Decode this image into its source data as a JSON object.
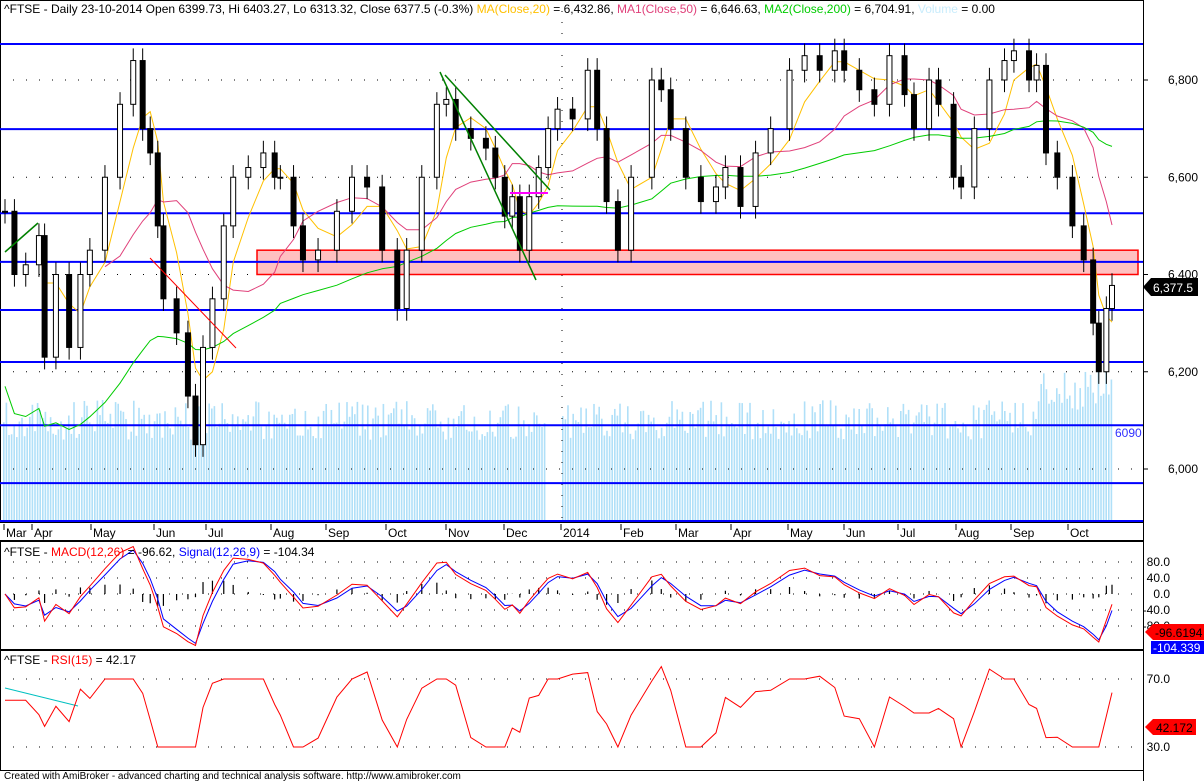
{
  "header": {
    "main_prefix": "^FTSE - Daily 23-10-2014 Open 6399.73, Hi 6403.27, Lo 6313.32, Close 6377.5 (-0.3%) ",
    "ma_label": "MA(Close,20)",
    "ma_value": " = 6,432.86, ",
    "ma1_label": "MA1(Close,50)",
    "ma1_value": " = 6,646.63, ",
    "ma2_label": "MA2(Close,200)",
    "ma2_value": " = 6,704.91, ",
    "volume_label": "Volume",
    "volume_value": " = 0.00",
    "macd_prefix": "^FTSE - ",
    "macd_label": "MACD(12,26)",
    "macd_value": " = -96.62, ",
    "signal_label": "Signal(12,26,9)",
    "signal_value": " = -104.34",
    "rsi_prefix": "^FTSE - ",
    "rsi_label": "RSI(15)",
    "rsi_value": " = 42.17"
  },
  "footer": "Created with AmiBroker - advanced charting and technical analysis software. http://www.amibroker.com",
  "colors": {
    "ma": "#ffc000",
    "ma1": "#e0407a",
    "ma2": "#00cc00",
    "volume": "#b0e0f8",
    "levels": "#0000ff",
    "zone_fill": "#ffc0c0",
    "zone_border": "#ff0000",
    "macd": "#ff0000",
    "signal": "#0000ff",
    "rsi": "#ff0000"
  },
  "chart_data": [
    {
      "type": "candlestick",
      "title": "^FTSE - Daily",
      "x_tick_labels": [
        "Mar",
        "Apr",
        "May",
        "Jun",
        "Jul",
        "Aug",
        "Sep",
        "Oct",
        "Nov",
        "Dec",
        "2014",
        "Feb",
        "Mar",
        "Apr",
        "May",
        "Jun",
        "Jul",
        "Aug",
        "Sep",
        "Oct"
      ],
      "y_tick_labels": [
        "6,800",
        "6,600",
        "6,400",
        "6,200",
        "6,000"
      ],
      "y_ticks": [
        6800,
        6600,
        6400,
        6200,
        6000
      ],
      "ylim": [
        5880,
        6960
      ],
      "last_price_label": "6,377.5",
      "last_price": 6377.5,
      "horizontal_levels": [
        6874,
        6699,
        6526,
        6426,
        6327,
        6220,
        6090,
        5971,
        5893
      ],
      "level_label": "6090",
      "resistance_zone": [
        6400,
        6450
      ],
      "grid": "dotted",
      "series": [
        {
          "name": "Close",
          "points": [
            [
              "2013-03-15",
              6530
            ],
            [
              "2013-03-20",
              6400
            ],
            [
              "2013-03-26",
              6420
            ],
            [
              "2013-04-02",
              6480
            ],
            [
              "2013-04-05",
              6230
            ],
            [
              "2013-04-11",
              6400
            ],
            [
              "2013-04-18",
              6250
            ],
            [
              "2013-04-24",
              6400
            ],
            [
              "2013-04-29",
              6450
            ],
            [
              "2013-05-07",
              6600
            ],
            [
              "2013-05-15",
              6750
            ],
            [
              "2013-05-22",
              6840
            ],
            [
              "2013-05-27",
              6700
            ],
            [
              "2013-05-31",
              6650
            ],
            [
              "2013-06-04",
              6500
            ],
            [
              "2013-06-07",
              6350
            ],
            [
              "2013-06-14",
              6280
            ],
            [
              "2013-06-20",
              6150
            ],
            [
              "2013-06-24",
              6050
            ],
            [
              "2013-06-28",
              6250
            ],
            [
              "2013-07-03",
              6350
            ],
            [
              "2013-07-09",
              6500
            ],
            [
              "2013-07-14",
              6600
            ],
            [
              "2013-07-22",
              6620
            ],
            [
              "2013-07-30",
              6650
            ],
            [
              "2013-08-05",
              6600
            ],
            [
              "2013-08-08",
              6600
            ],
            [
              "2013-08-15",
              6500
            ],
            [
              "2013-08-20",
              6430
            ],
            [
              "2013-08-28",
              6450
            ],
            [
              "2013-09-07",
              6530
            ],
            [
              "2013-09-15",
              6600
            ],
            [
              "2013-09-23",
              6580
            ],
            [
              "2013-10-01",
              6450
            ],
            [
              "2013-10-09",
              6330
            ],
            [
              "2013-10-14",
              6450
            ],
            [
              "2013-10-22",
              6600
            ],
            [
              "2013-10-30",
              6750
            ],
            [
              "2013-11-04",
              6760
            ],
            [
              "2013-11-09",
              6700
            ],
            [
              "2013-11-17",
              6680
            ],
            [
              "2013-11-25",
              6660
            ],
            [
              "2013-11-30",
              6600
            ],
            [
              "2013-12-05",
              6520
            ],
            [
              "2013-12-09",
              6560
            ],
            [
              "2013-12-13",
              6450
            ],
            [
              "2013-12-18",
              6560
            ],
            [
              "2013-12-23",
              6620
            ],
            [
              "2013-12-28",
              6700
            ],
            [
              "2014-01-02",
              6740
            ],
            [
              "2014-01-10",
              6720
            ],
            [
              "2014-01-18",
              6820
            ],
            [
              "2014-01-23",
              6700
            ],
            [
              "2014-01-28",
              6550
            ],
            [
              "2014-02-03",
              6450
            ],
            [
              "2014-02-10",
              6600
            ],
            [
              "2014-02-21",
              6800
            ],
            [
              "2014-02-26",
              6780
            ],
            [
              "2014-03-03",
              6700
            ],
            [
              "2014-03-11",
              6600
            ],
            [
              "2014-03-19",
              6550
            ],
            [
              "2014-03-27",
              6580
            ],
            [
              "2014-04-01",
              6620
            ],
            [
              "2014-04-09",
              6540
            ],
            [
              "2014-04-17",
              6650
            ],
            [
              "2014-04-25",
              6700
            ],
            [
              "2014-05-05",
              6820
            ],
            [
              "2014-05-13",
              6850
            ],
            [
              "2014-05-21",
              6820
            ],
            [
              "2014-05-29",
              6860
            ],
            [
              "2014-06-03",
              6820
            ],
            [
              "2014-06-11",
              6780
            ],
            [
              "2014-06-19",
              6750
            ],
            [
              "2014-06-27",
              6850
            ],
            [
              "2014-07-05",
              6770
            ],
            [
              "2014-07-10",
              6700
            ],
            [
              "2014-07-18",
              6800
            ],
            [
              "2014-07-23",
              6750
            ],
            [
              "2014-07-31",
              6600
            ],
            [
              "2014-08-04",
              6580
            ],
            [
              "2014-08-11",
              6700
            ],
            [
              "2014-08-19",
              6800
            ],
            [
              "2014-08-27",
              6840
            ],
            [
              "2014-09-01",
              6860
            ],
            [
              "2014-09-09",
              6800
            ],
            [
              "2014-09-13",
              6830
            ],
            [
              "2014-09-18",
              6650
            ],
            [
              "2014-09-24",
              6600
            ],
            [
              "2014-10-02",
              6500
            ],
            [
              "2014-10-08",
              6430
            ],
            [
              "2014-10-13",
              6300
            ],
            [
              "2014-10-16",
              6200
            ],
            [
              "2014-10-20",
              6330
            ],
            [
              "2014-10-23",
              6377.5
            ]
          ]
        },
        {
          "name": "MA(Close,20)",
          "last": 6432.86
        },
        {
          "name": "MA1(Close,50)",
          "last": 6646.63
        },
        {
          "name": "MA2(Close,200)",
          "last": 6704.91
        }
      ]
    },
    {
      "type": "line",
      "title": "^FTSE - MACD(12,26), Signal(12,26,9)",
      "y_tick_labels": [
        "80.0",
        "40.0",
        "0.0",
        "-40.0",
        "-80.0"
      ],
      "y_ticks": [
        80,
        40,
        0,
        -40,
        -80
      ],
      "ylim": [
        -120,
        120
      ],
      "series": [
        {
          "name": "MACD(12,26)",
          "last": -96.6194,
          "last_label": "-96.6194"
        },
        {
          "name": "Signal(12,26,9)",
          "last": -104.339,
          "last_label": "-104.339"
        }
      ]
    },
    {
      "type": "line",
      "title": "^FTSE - RSI(15)",
      "y_tick_labels": [
        "70.0",
        "30.0"
      ],
      "y_ticks": [
        70,
        30
      ],
      "ylim": [
        14,
        86
      ],
      "series": [
        {
          "name": "RSI(15)",
          "last": 42.172,
          "last_label": "42.172"
        }
      ]
    }
  ]
}
